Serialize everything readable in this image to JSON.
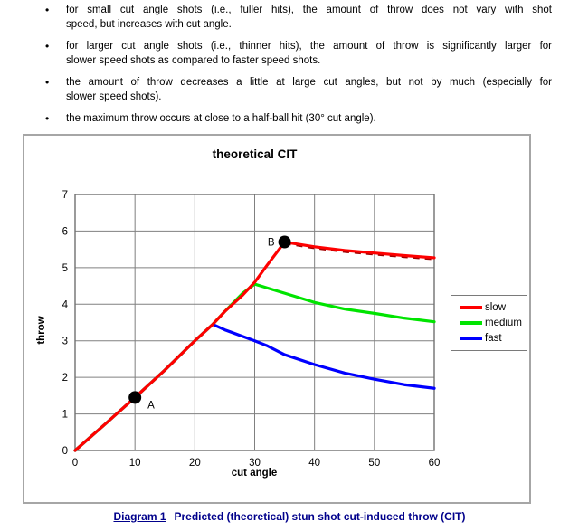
{
  "bullets": {
    "glyph": "•",
    "items": [
      [
        "for small cut angle shots (i.e., fuller hits), the amount of throw does not vary with shot",
        "speed, but increases with cut angle."
      ],
      [
        "for larger cut angle shots (i.e., thinner hits), the amount of throw is significantly larger for",
        "slower speed shots as compared to faster speed shots."
      ],
      [
        "the amount of throw decreases a little at large cut angles, but not by much (especially for",
        "slower speed shots)."
      ],
      [
        "the maximum throw occurs at close to a half-ball hit (30° cut angle)."
      ]
    ]
  },
  "chart_data": {
    "type": "line",
    "title": "theoretical CIT",
    "xlabel": "cut angle",
    "ylabel": "throw",
    "xlim": [
      0,
      60
    ],
    "ylim": [
      0,
      7
    ],
    "x_ticks": [
      0,
      10,
      20,
      30,
      40,
      50,
      60
    ],
    "y_ticks": [
      0,
      1,
      2,
      3,
      4,
      5,
      6,
      7
    ],
    "grid": true,
    "grid_color": "#808080",
    "legend_position": "right",
    "x": [
      0,
      5,
      10,
      15,
      20,
      23,
      25,
      28,
      30,
      32,
      35,
      40,
      45,
      50,
      55,
      60
    ],
    "series": [
      {
        "name": "slow",
        "color": "#ff0000",
        "overlay_dashed": true,
        "values": [
          0,
          0.72,
          1.45,
          2.2,
          3.0,
          3.45,
          3.8,
          4.25,
          4.6,
          5.05,
          5.7,
          5.57,
          5.47,
          5.4,
          5.33,
          5.27
        ]
      },
      {
        "name": "medium",
        "color": "#00e400",
        "values": [
          0,
          0.72,
          1.45,
          2.2,
          3.0,
          3.45,
          3.8,
          4.3,
          4.55,
          4.45,
          4.3,
          4.05,
          3.87,
          3.75,
          3.62,
          3.52
        ]
      },
      {
        "name": "fast",
        "color": "#0000ff",
        "values": [
          0,
          0.72,
          1.45,
          2.2,
          3.0,
          3.45,
          3.3,
          3.12,
          3.0,
          2.87,
          2.62,
          2.35,
          2.12,
          1.95,
          1.8,
          1.7
        ]
      }
    ],
    "annotations": [
      {
        "label": "A",
        "x": 10,
        "y": 1.45,
        "label_side": "right"
      },
      {
        "label": "B",
        "x": 35,
        "y": 5.7,
        "label_side": "left"
      }
    ]
  },
  "caption": {
    "label": "Diagram 1",
    "text": "Predicted (theoretical) stun shot cut-induced throw (CIT)"
  }
}
